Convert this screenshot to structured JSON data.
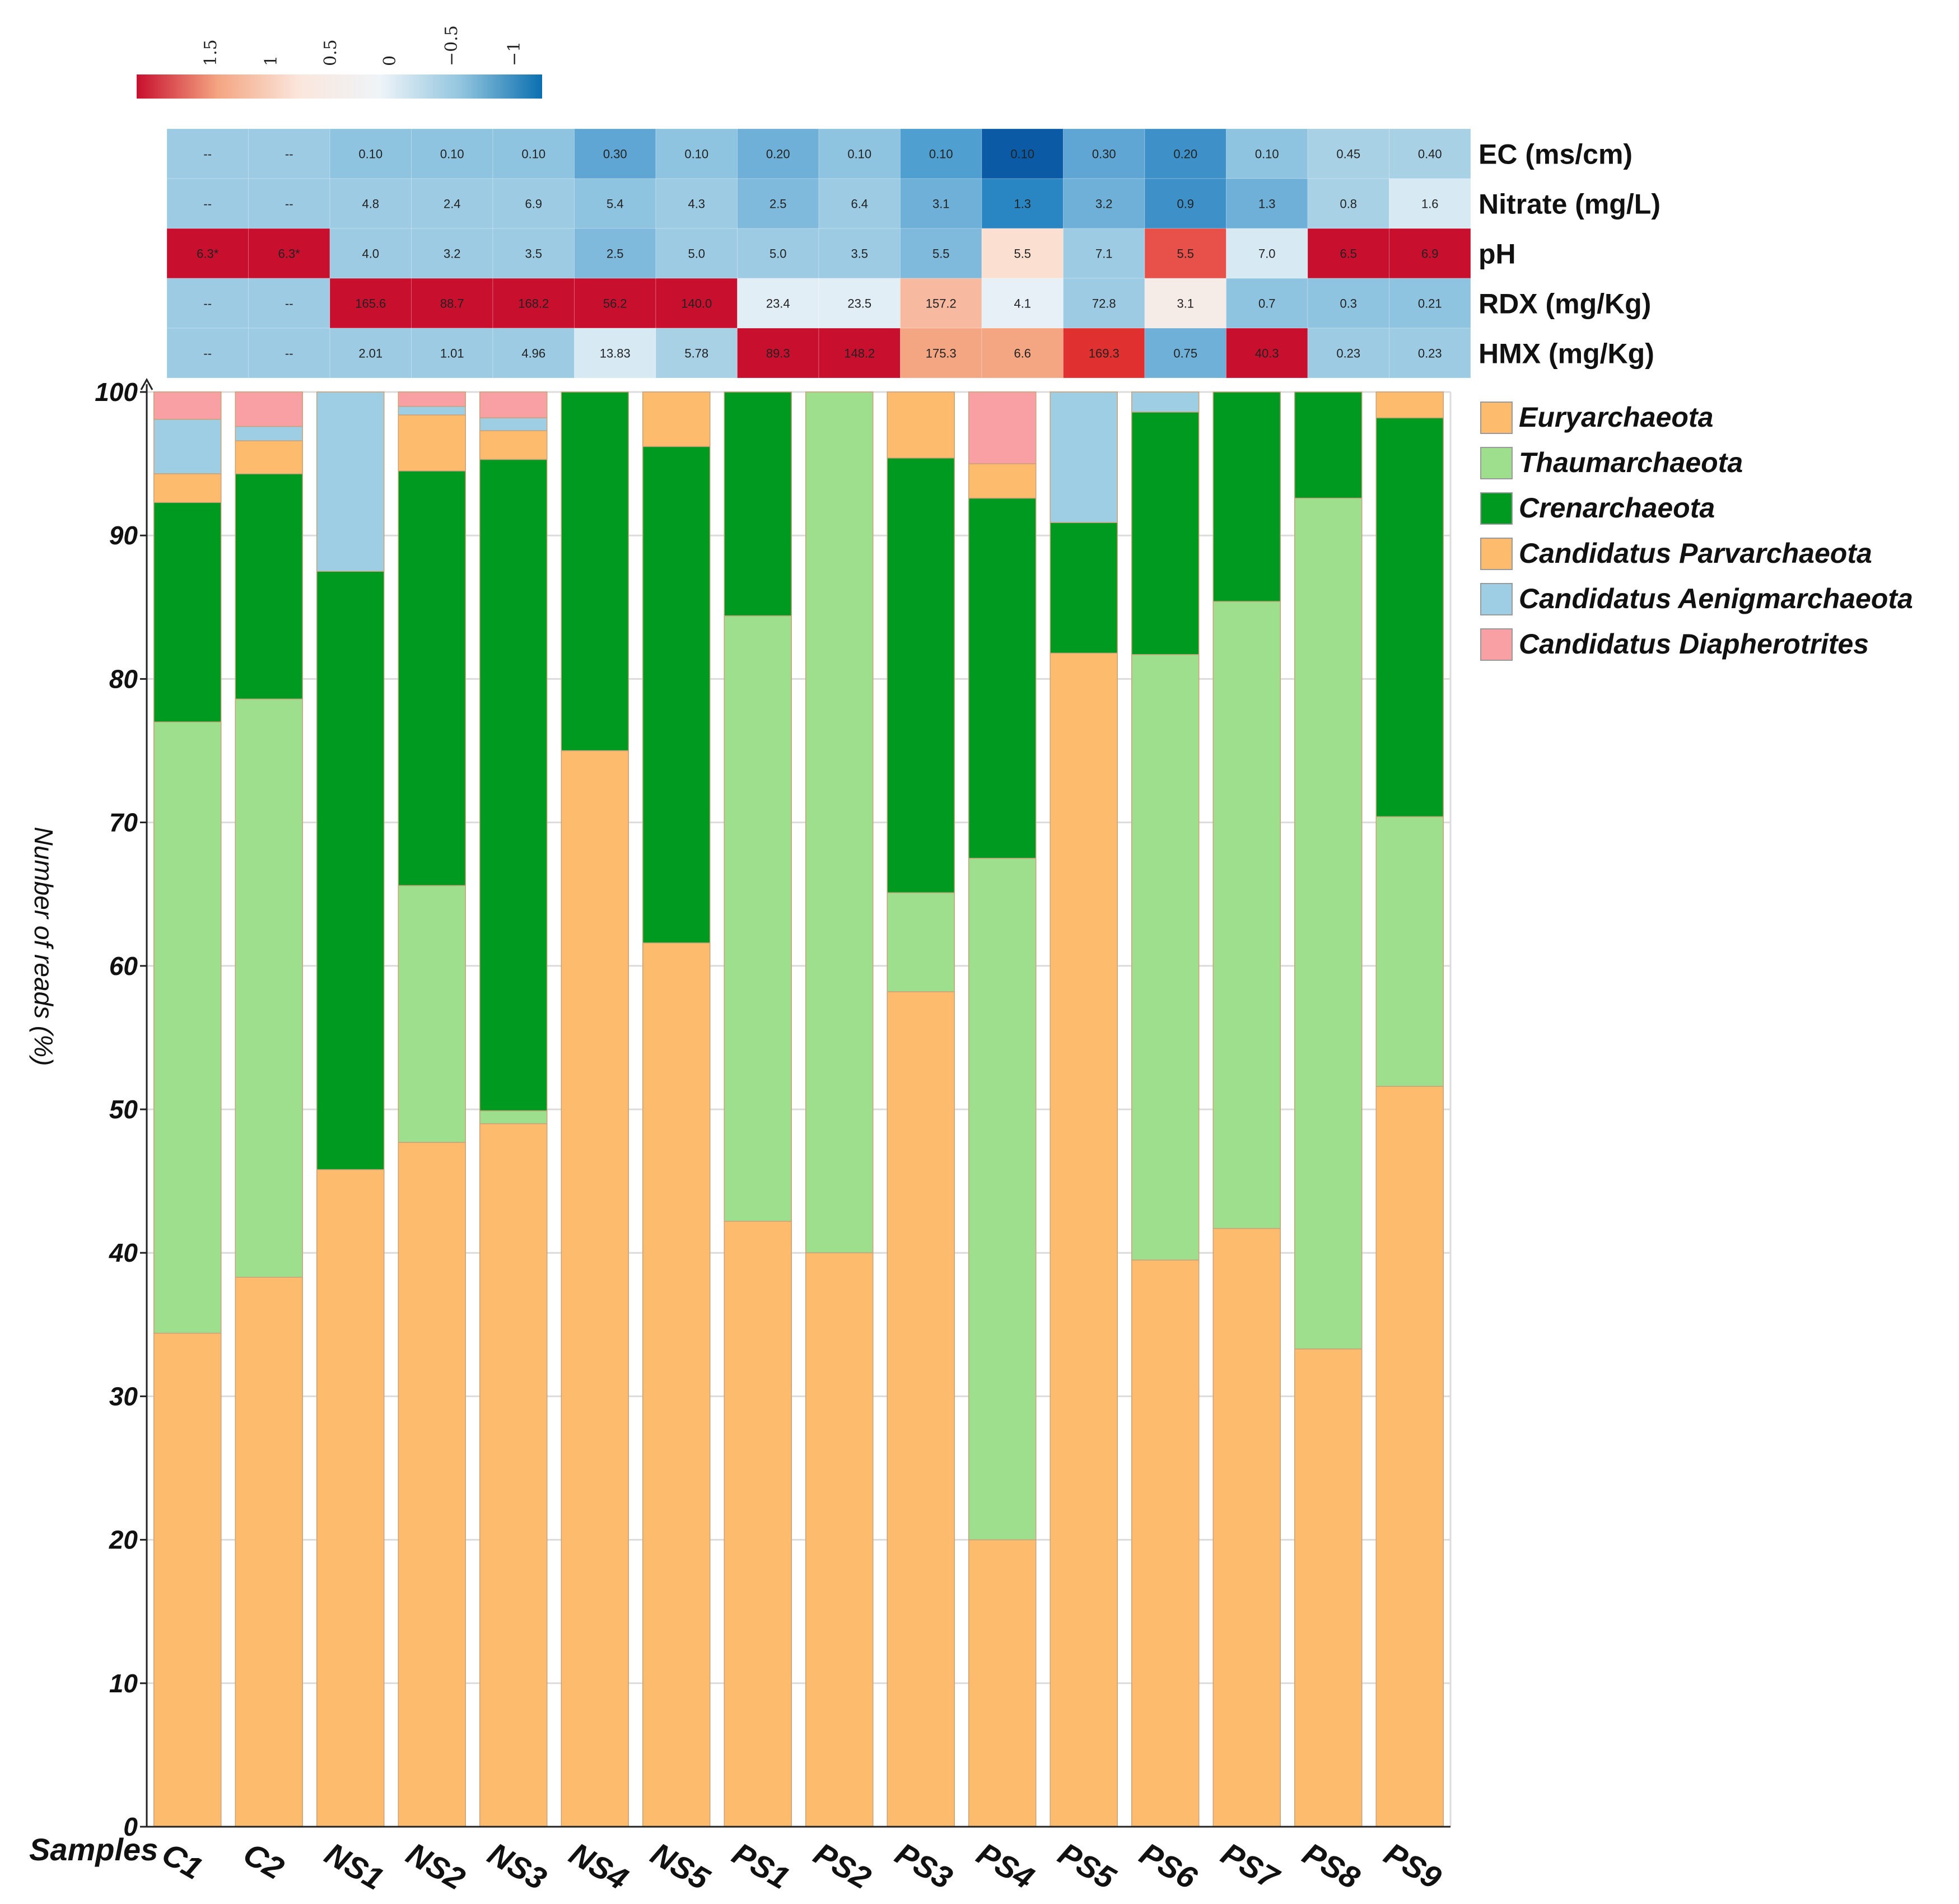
{
  "colorbar": {
    "ticks": [
      "1.5",
      "1",
      "0.5",
      "0",
      "−0.5",
      "−1"
    ],
    "colors": [
      "#c8102e",
      "#f4a582",
      "#fbe6dc",
      "#eef4f8",
      "#92c5de",
      "#0b6fb0"
    ]
  },
  "heatmap": {
    "rows": [
      {
        "label": "EC (ms/cm)",
        "values": [
          "--",
          "--",
          "0.10",
          "0.10",
          "0.10",
          "0.30",
          "0.10",
          "0.20",
          "0.10",
          "0.10",
          "0.10",
          "0.30",
          "0.20",
          "0.10",
          "0.45",
          "0.40"
        ],
        "colors": [
          "#9ccbe3",
          "#9ccbe3",
          "#8fc4e0",
          "#8fc4e0",
          "#8fc4e0",
          "#5fa6d4",
          "#8fc4e0",
          "#6fb0d8",
          "#8fc4e0",
          "#4f9fd0",
          "#0b5aa6",
          "#5fa6d4",
          "#3d91c8",
          "#8fc4e0",
          "#a9d1e6",
          "#a9d1e6"
        ]
      },
      {
        "label": "Nitrate (mg/L)",
        "values": [
          "--",
          "--",
          "4.8",
          "2.4",
          "6.9",
          "5.4",
          "4.3",
          "2.5",
          "6.4",
          "3.1",
          "1.3",
          "3.2",
          "0.9",
          "1.3",
          "0.8",
          "1.6"
        ],
        "colors": [
          "#9ccbe3",
          "#9ccbe3",
          "#9ccbe3",
          "#9ccbe3",
          "#9ccbe3",
          "#8fc4e0",
          "#9ccbe3",
          "#7fb9dc",
          "#9ccbe3",
          "#6fb0d8",
          "#2a86c2",
          "#6fb0d8",
          "#3d91c8",
          "#6fb0d8",
          "#a9d1e6",
          "#d7e9f2"
        ]
      },
      {
        "label": "pH",
        "values": [
          "6.3*",
          "6.3*",
          "4.0",
          "3.2",
          "3.5",
          "2.5",
          "5.0",
          "5.0",
          "3.5",
          "5.5",
          "5.5",
          "7.1",
          "5.5",
          "7.0",
          "6.5",
          "6.9"
        ],
        "colors": [
          "#c8102e",
          "#c8102e",
          "#9ccbe3",
          "#9ccbe3",
          "#9ccbe3",
          "#7fb9dc",
          "#9ccbe3",
          "#9ccbe3",
          "#9ccbe3",
          "#7fb9dc",
          "#fbe0d2",
          "#9ccbe3",
          "#e8504a",
          "#d7e9f2",
          "#c8102e",
          "#c8102e"
        ]
      },
      {
        "label": "RDX (mg/Kg)",
        "values": [
          "--",
          "--",
          "165.6",
          "88.7",
          "168.2",
          "56.2",
          "140.0",
          "23.4",
          "23.5",
          "157.2",
          "4.1",
          "72.8",
          "3.1",
          "0.7",
          "0.3",
          "0.21"
        ],
        "colors": [
          "#9ccbe3",
          "#9ccbe3",
          "#c8102e",
          "#c8102e",
          "#c8102e",
          "#c8102e",
          "#c8102e",
          "#e2eef5",
          "#e2eef5",
          "#f7b9a0",
          "#e6f0f6",
          "#9ccbe3",
          "#f6ece7",
          "#8fc4e0",
          "#8fc4e0",
          "#8fc4e0"
        ]
      },
      {
        "label": "HMX (mg/Kg)",
        "values": [
          "--",
          "--",
          "2.01",
          "1.01",
          "4.96",
          "13.83",
          "5.78",
          "89.3",
          "148.2",
          "175.3",
          "6.6",
          "169.3",
          "0.75",
          "40.3",
          "0.23",
          "0.23"
        ],
        "colors": [
          "#9ccbe3",
          "#9ccbe3",
          "#9ccbe3",
          "#9ccbe3",
          "#9ccbe3",
          "#d7e9f2",
          "#a9d1e6",
          "#c8102e",
          "#c8102e",
          "#f4a582",
          "#f4a582",
          "#e03030",
          "#6fb0d8",
          "#c8102e",
          "#9ccbe3",
          "#9ccbe3"
        ]
      }
    ]
  },
  "chart_data": {
    "type": "bar",
    "stacked": true,
    "categories": [
      "C1",
      "C2",
      "NS1",
      "NS2",
      "NS3",
      "NS4",
      "NS5",
      "PS1",
      "PS2",
      "PS3",
      "PS4",
      "PS5",
      "PS6",
      "PS7",
      "PS8",
      "PS9"
    ],
    "xlabel": "Samples",
    "ylabel": "Number of reads (%)",
    "ylim": [
      0,
      100
    ],
    "yticks": [
      "0",
      "10",
      "20",
      "30",
      "40",
      "50",
      "60",
      "70",
      "80",
      "90",
      "100"
    ],
    "series": [
      {
        "name": "Euryarchaeota",
        "color": "#fdbb6e",
        "values": [
          34.4,
          38.3,
          45.8,
          47.7,
          49.0,
          75.0,
          61.6,
          42.2,
          40.0,
          58.2,
          20.0,
          81.8,
          39.5,
          41.7,
          33.3,
          51.6
        ]
      },
      {
        "name": "Thaumarchaeota",
        "color": "#9ddf8c",
        "values": [
          42.6,
          40.3,
          0.0,
          17.9,
          0.9,
          0.0,
          0.0,
          42.2,
          60.0,
          6.9,
          47.5,
          0.0,
          42.2,
          43.7,
          59.3,
          18.8
        ]
      },
      {
        "name": "Crenarchaeota",
        "color": "#009a21",
        "values": [
          15.3,
          15.7,
          41.7,
          28.9,
          45.4,
          25.0,
          34.6,
          15.6,
          0.0,
          30.3,
          25.1,
          9.1,
          16.9,
          14.6,
          7.4,
          27.8
        ]
      },
      {
        "name": "Candidatus Parvarchaeota",
        "color": "#fdbb6e",
        "values": [
          2.0,
          2.3,
          0.0,
          3.9,
          2.0,
          0.0,
          3.8,
          0.0,
          0.0,
          4.6,
          2.4,
          0.0,
          0.0,
          0.0,
          0.0,
          1.8
        ]
      },
      {
        "name": "Candidatus Aenigmarchaeota",
        "color": "#9ecee4",
        "values": [
          3.8,
          1.0,
          12.5,
          0.6,
          0.9,
          0.0,
          0.0,
          0.0,
          0.0,
          0.0,
          0.0,
          9.1,
          1.4,
          0.0,
          0.0,
          0.0
        ]
      },
      {
        "name": "Candidatus Diapherotrites",
        "color": "#f9a0a4",
        "values": [
          1.9,
          2.4,
          0.0,
          1.0,
          1.8,
          0.0,
          0.0,
          0.0,
          0.0,
          0.0,
          5.0,
          0.0,
          0.0,
          0.0,
          0.0,
          0.0
        ]
      }
    ],
    "legend_position": "right",
    "grid": true
  }
}
